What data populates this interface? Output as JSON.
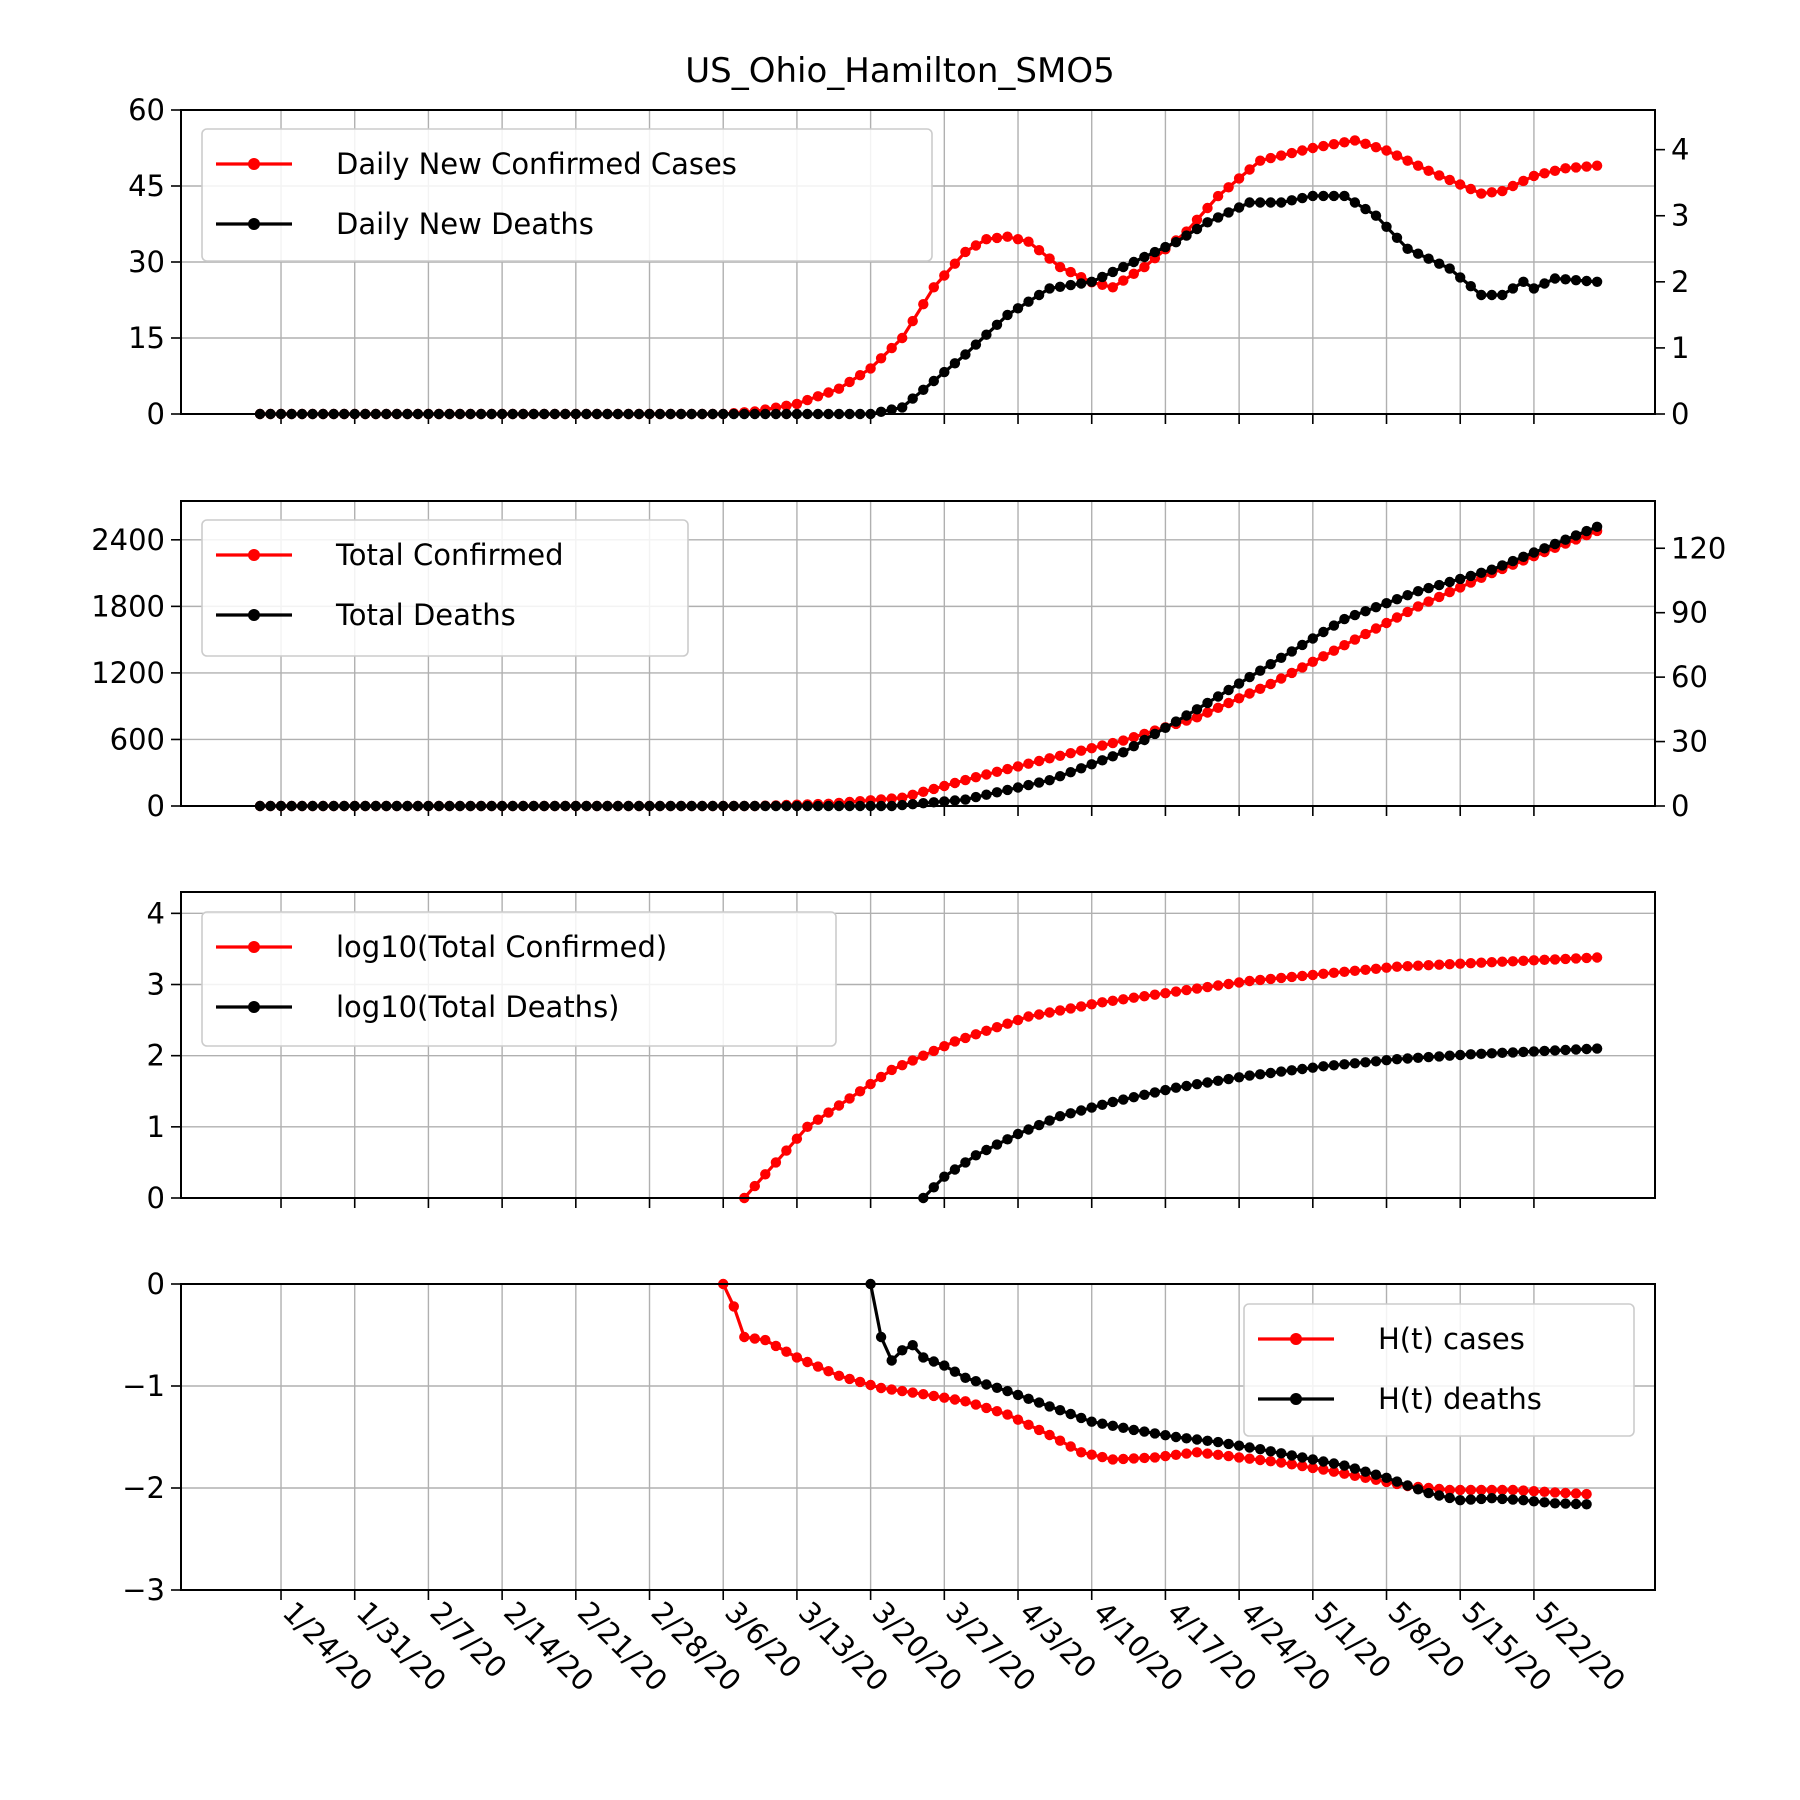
{
  "chart_data": {
    "type": "line",
    "title": "US_Ohio_Hamilton_SMO5",
    "x_start": "1/22/20",
    "x_end": "5/25/20",
    "x_ticks": [
      "1/24/20",
      "1/31/20",
      "2/7/20",
      "2/14/20",
      "2/21/20",
      "2/28/20",
      "3/6/20",
      "3/13/20",
      "3/20/20",
      "3/27/20",
      "4/3/20",
      "4/10/20",
      "4/17/20",
      "4/24/20",
      "5/1/20",
      "5/8/20",
      "5/15/20",
      "5/22/20"
    ],
    "colors": {
      "cases": "#ff0000",
      "deaths": "#000000",
      "grid": "#b0b0b0"
    },
    "panels": [
      {
        "name": "daily",
        "ylim": [
          0,
          60
        ],
        "yticks": [
          "0",
          "15",
          "30",
          "45",
          "60"
        ],
        "ylim_right": [
          0,
          4.6
        ],
        "yticks_right": [
          "0",
          "1",
          "2",
          "3",
          "4"
        ],
        "legend_position": "top-left",
        "series": [
          {
            "name": "Daily New Confirmed Cases",
            "color": "#ff0000",
            "axis": "left",
            "points": [
              [
                "1/22/20",
                0
              ],
              [
                "3/6/20",
                0
              ],
              [
                "3/9/20",
                0.5
              ],
              [
                "3/13/20",
                2
              ],
              [
                "3/17/20",
                5
              ],
              [
                "3/20/20",
                9
              ],
              [
                "3/23/20",
                15
              ],
              [
                "3/26/20",
                25
              ],
              [
                "3/29/20",
                32
              ],
              [
                "3/31/20",
                34.5
              ],
              [
                "4/2/20",
                35
              ],
              [
                "4/4/20",
                34
              ],
              [
                "4/7/20",
                29
              ],
              [
                "4/10/20",
                26
              ],
              [
                "4/12/20",
                25
              ],
              [
                "4/15/20",
                29
              ],
              [
                "4/19/20",
                36
              ],
              [
                "4/22/20",
                43
              ],
              [
                "4/26/20",
                50
              ],
              [
                "5/1/20",
                52.5
              ],
              [
                "5/5/20",
                54
              ],
              [
                "5/8/20",
                52
              ],
              [
                "5/12/20",
                48
              ],
              [
                "5/17/20",
                43.5
              ],
              [
                "5/19/20",
                44
              ],
              [
                "5/22/20",
                47
              ],
              [
                "5/25/20",
                48.5
              ],
              [
                "5/28/20",
                49
              ]
            ]
          },
          {
            "name": "Daily New Deaths",
            "color": "#000000",
            "axis": "right",
            "points": [
              [
                "1/22/20",
                0
              ],
              [
                "3/20/20",
                0
              ],
              [
                "3/23/20",
                0.1
              ],
              [
                "3/26/20",
                0.5
              ],
              [
                "3/29/20",
                0.9
              ],
              [
                "4/2/20",
                1.5
              ],
              [
                "4/6/20",
                1.9
              ],
              [
                "4/10/20",
                2.0
              ],
              [
                "4/14/20",
                2.3
              ],
              [
                "4/18/20",
                2.6
              ],
              [
                "4/21/20",
                2.9
              ],
              [
                "4/25/20",
                3.2
              ],
              [
                "4/28/20",
                3.2
              ],
              [
                "5/1/20",
                3.3
              ],
              [
                "5/4/20",
                3.3
              ],
              [
                "5/7/20",
                3.0
              ],
              [
                "5/10/20",
                2.5
              ],
              [
                "5/14/20",
                2.2
              ],
              [
                "5/17/20",
                1.8
              ],
              [
                "5/19/20",
                1.8
              ],
              [
                "5/21/20",
                2.0
              ],
              [
                "5/22/20",
                1.9
              ],
              [
                "5/24/20",
                2.05
              ],
              [
                "5/28/20",
                2.0
              ]
            ]
          }
        ]
      },
      {
        "name": "total",
        "ylim": [
          0,
          2750
        ],
        "yticks": [
          "0",
          "600",
          "1200",
          "1800",
          "2400"
        ],
        "ylim_right": [
          0,
          142
        ],
        "yticks_right": [
          "0",
          "30",
          "60",
          "90",
          "120"
        ],
        "legend_position": "top-left",
        "series": [
          {
            "name": "Total Confirmed",
            "color": "#ff0000",
            "axis": "left",
            "points": [
              [
                "1/22/20",
                0
              ],
              [
                "3/9/20",
                0
              ],
              [
                "3/16/20",
                20
              ],
              [
                "3/23/20",
                75
              ],
              [
                "3/30/20",
                260
              ],
              [
                "4/6/20",
                430
              ],
              [
                "4/13/20",
                590
              ],
              [
                "4/20/20",
                800
              ],
              [
                "4/27/20",
                1100
              ],
              [
                "5/4/20",
                1450
              ],
              [
                "5/11/20",
                1800
              ],
              [
                "5/18/20",
                2100
              ],
              [
                "5/28/20",
                2480
              ]
            ]
          },
          {
            "name": "Total Deaths",
            "color": "#000000",
            "axis": "right",
            "points": [
              [
                "1/22/20",
                0
              ],
              [
                "3/22/20",
                0
              ],
              [
                "3/29/20",
                3
              ],
              [
                "4/6/20",
                12
              ],
              [
                "4/13/20",
                25
              ],
              [
                "4/20/20",
                45
              ],
              [
                "4/27/20",
                66
              ],
              [
                "5/4/20",
                87
              ],
              [
                "5/11/20",
                100
              ],
              [
                "5/18/20",
                110
              ],
              [
                "5/28/20",
                130
              ]
            ]
          }
        ]
      },
      {
        "name": "log",
        "ylim": [
          0,
          4.3
        ],
        "yticks": [
          "0",
          "1",
          "2",
          "3",
          "4"
        ],
        "legend_position": "top-left",
        "series": [
          {
            "name": "log10(Total Confirmed)",
            "color": "#ff0000",
            "axis": "left",
            "points": [
              [
                "3/8/20",
                0
              ],
              [
                "3/11/20",
                0.5
              ],
              [
                "3/14/20",
                1.0
              ],
              [
                "3/18/20",
                1.4
              ],
              [
                "3/22/20",
                1.8
              ],
              [
                "3/28/20",
                2.2
              ],
              [
                "4/4/20",
                2.55
              ],
              [
                "4/11/20",
                2.75
              ],
              [
                "4/18/20",
                2.9
              ],
              [
                "4/25/20",
                3.05
              ],
              [
                "5/2/20",
                3.15
              ],
              [
                "5/9/20",
                3.25
              ],
              [
                "5/16/20",
                3.3
              ],
              [
                "5/28/20",
                3.38
              ]
            ]
          },
          {
            "name": "log10(Total Deaths)",
            "color": "#000000",
            "axis": "left",
            "points": [
              [
                "3/25/20",
                0
              ],
              [
                "3/27/20",
                0.3
              ],
              [
                "3/30/20",
                0.6
              ],
              [
                "4/3/20",
                0.9
              ],
              [
                "4/7/20",
                1.15
              ],
              [
                "4/12/20",
                1.35
              ],
              [
                "4/18/20",
                1.55
              ],
              [
                "4/25/20",
                1.72
              ],
              [
                "5/2/20",
                1.85
              ],
              [
                "5/9/20",
                1.95
              ],
              [
                "5/16/20",
                2.02
              ],
              [
                "5/28/20",
                2.1
              ]
            ]
          }
        ]
      },
      {
        "name": "H",
        "ylim": [
          -3,
          0
        ],
        "yticks": [
          "−3",
          "−2",
          "−1",
          "0"
        ],
        "legend_position": "top-right",
        "series": [
          {
            "name": "H(t) cases",
            "color": "#ff0000",
            "axis": "left",
            "points": [
              [
                "3/6/20",
                0
              ],
              [
                "3/7/20",
                -0.22
              ],
              [
                "3/8/20",
                -0.52
              ],
              [
                "3/10/20",
                -0.55
              ],
              [
                "3/13/20",
                -0.72
              ],
              [
                "3/17/20",
                -0.9
              ],
              [
                "3/21/20",
                -1.02
              ],
              [
                "3/25/20",
                -1.08
              ],
              [
                "3/29/20",
                -1.15
              ],
              [
                "4/2/20",
                -1.28
              ],
              [
                "4/6/20",
                -1.48
              ],
              [
                "4/9/20",
                -1.65
              ],
              [
                "4/12/20",
                -1.72
              ],
              [
                "4/16/20",
                -1.7
              ],
              [
                "4/20/20",
                -1.65
              ],
              [
                "4/24/20",
                -1.7
              ],
              [
                "4/28/20",
                -1.75
              ],
              [
                "5/2/20",
                -1.82
              ],
              [
                "5/6/20",
                -1.9
              ],
              [
                "5/10/20",
                -1.98
              ],
              [
                "5/14/20",
                -2.02
              ],
              [
                "5/20/20",
                -2.02
              ],
              [
                "5/27/20",
                -2.06
              ]
            ]
          },
          {
            "name": "H(t) deaths",
            "color": "#000000",
            "axis": "left",
            "points": [
              [
                "3/20/20",
                0
              ],
              [
                "3/21/20",
                -0.52
              ],
              [
                "3/22/20",
                -0.75
              ],
              [
                "3/23/20",
                -0.65
              ],
              [
                "3/24/20",
                -0.6
              ],
              [
                "3/25/20",
                -0.72
              ],
              [
                "3/27/20",
                -0.8
              ],
              [
                "3/29/20",
                -0.92
              ],
              [
                "4/2/20",
                -1.05
              ],
              [
                "4/6/20",
                -1.2
              ],
              [
                "4/10/20",
                -1.35
              ],
              [
                "4/14/20",
                -1.43
              ],
              [
                "4/18/20",
                -1.5
              ],
              [
                "4/22/20",
                -1.55
              ],
              [
                "4/26/20",
                -1.62
              ],
              [
                "4/30/20",
                -1.7
              ],
              [
                "5/4/20",
                -1.78
              ],
              [
                "5/8/20",
                -1.9
              ],
              [
                "5/12/20",
                -2.05
              ],
              [
                "5/15/20",
                -2.12
              ],
              [
                "5/18/20",
                -2.1
              ],
              [
                "5/21/20",
                -2.12
              ],
              [
                "5/24/20",
                -2.15
              ],
              [
                "5/27/20",
                -2.16
              ]
            ]
          }
        ]
      }
    ]
  }
}
